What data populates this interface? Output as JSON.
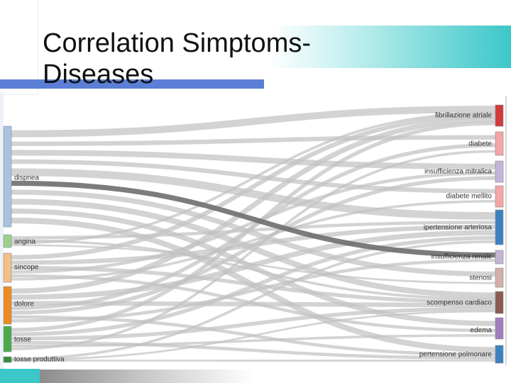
{
  "slide": {
    "title_line1": "Correlation Simptoms-",
    "title_line2": "Diseases"
  },
  "colors": {
    "teal": "#3cc7c8",
    "blue_bar": "#5b7fd6",
    "link": "#c2c2c2",
    "link_dark": "#6e6e6e"
  },
  "symptoms": [
    {
      "label": "dispnea",
      "color": "#a9c2df"
    },
    {
      "label": "angina",
      "color": "#9bd08a"
    },
    {
      "label": "sincope",
      "color": "#f5bf86"
    },
    {
      "label": "dolore",
      "color": "#ee8a1f"
    },
    {
      "label": "tosse",
      "color": "#4daa48"
    },
    {
      "label": "tosse produttiva",
      "color": "#3a8a36"
    }
  ],
  "diseases": [
    {
      "label": "fibrillazione atriale",
      "color": "#d33a3c"
    },
    {
      "label": "diabete",
      "color": "#f5a5a4"
    },
    {
      "label": "insufficienza mitralica",
      "color": "#c5b3d8"
    },
    {
      "label": "diabete mellito",
      "color": "#f5a5a4"
    },
    {
      "label": "ipertensione arteriosa",
      "color": "#3c82c0"
    },
    {
      "label": "insufficienza renale",
      "color": "#c5b3d8"
    },
    {
      "label": "stenosi",
      "color": "#d4b0a8"
    },
    {
      "label": "scompenso cardiaco",
      "color": "#8c5a50"
    },
    {
      "label": "edema",
      "color": "#a17ec0"
    },
    {
      "label": "pertensione polmonare",
      "color": "#3c82c0"
    }
  ]
}
